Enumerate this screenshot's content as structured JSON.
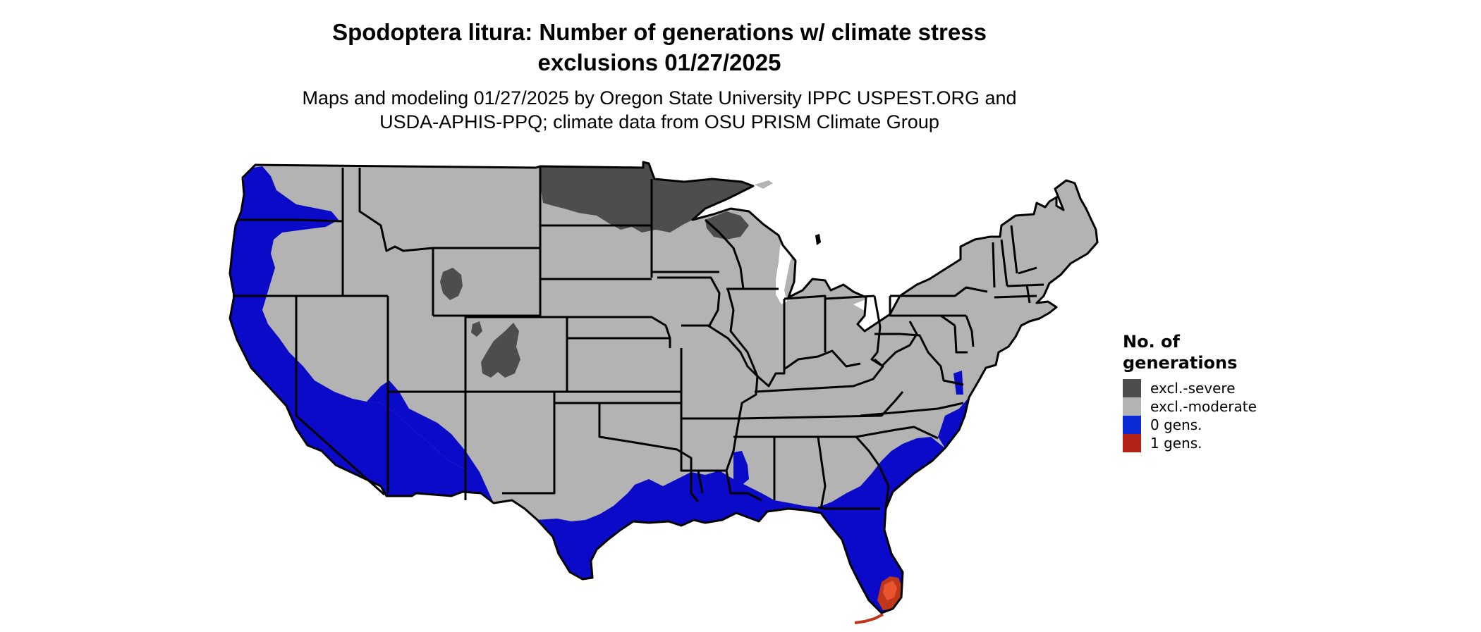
{
  "title_line1": "Spodoptera litura: Number of generations w/ climate stress",
  "title_line2": "exclusions 01/27/2025",
  "subtitle_line1": "Maps and modeling 01/27/2025 by Oregon State University IPPC USPEST.ORG and",
  "subtitle_line2": "USDA-APHIS-PPQ; climate data from OSU PRISM Climate Group",
  "legend": {
    "title_line1": "No. of",
    "title_line2": "generations",
    "items": [
      {
        "label": "excl.-severe",
        "color": "#4d4d4d"
      },
      {
        "label": "excl.-moderate",
        "color": "#b3b3b3"
      },
      {
        "label": "0 gens.",
        "color": "#0a2bd6"
      },
      {
        "label": "1 gens.",
        "color": "#b22216"
      }
    ]
  },
  "colors": {
    "land": "#b3b3b3",
    "severe": "#4d4d4d",
    "zero": "#0a0ac8",
    "one": "#c0361a",
    "one_light": "#e8552e",
    "border": "#000000"
  }
}
